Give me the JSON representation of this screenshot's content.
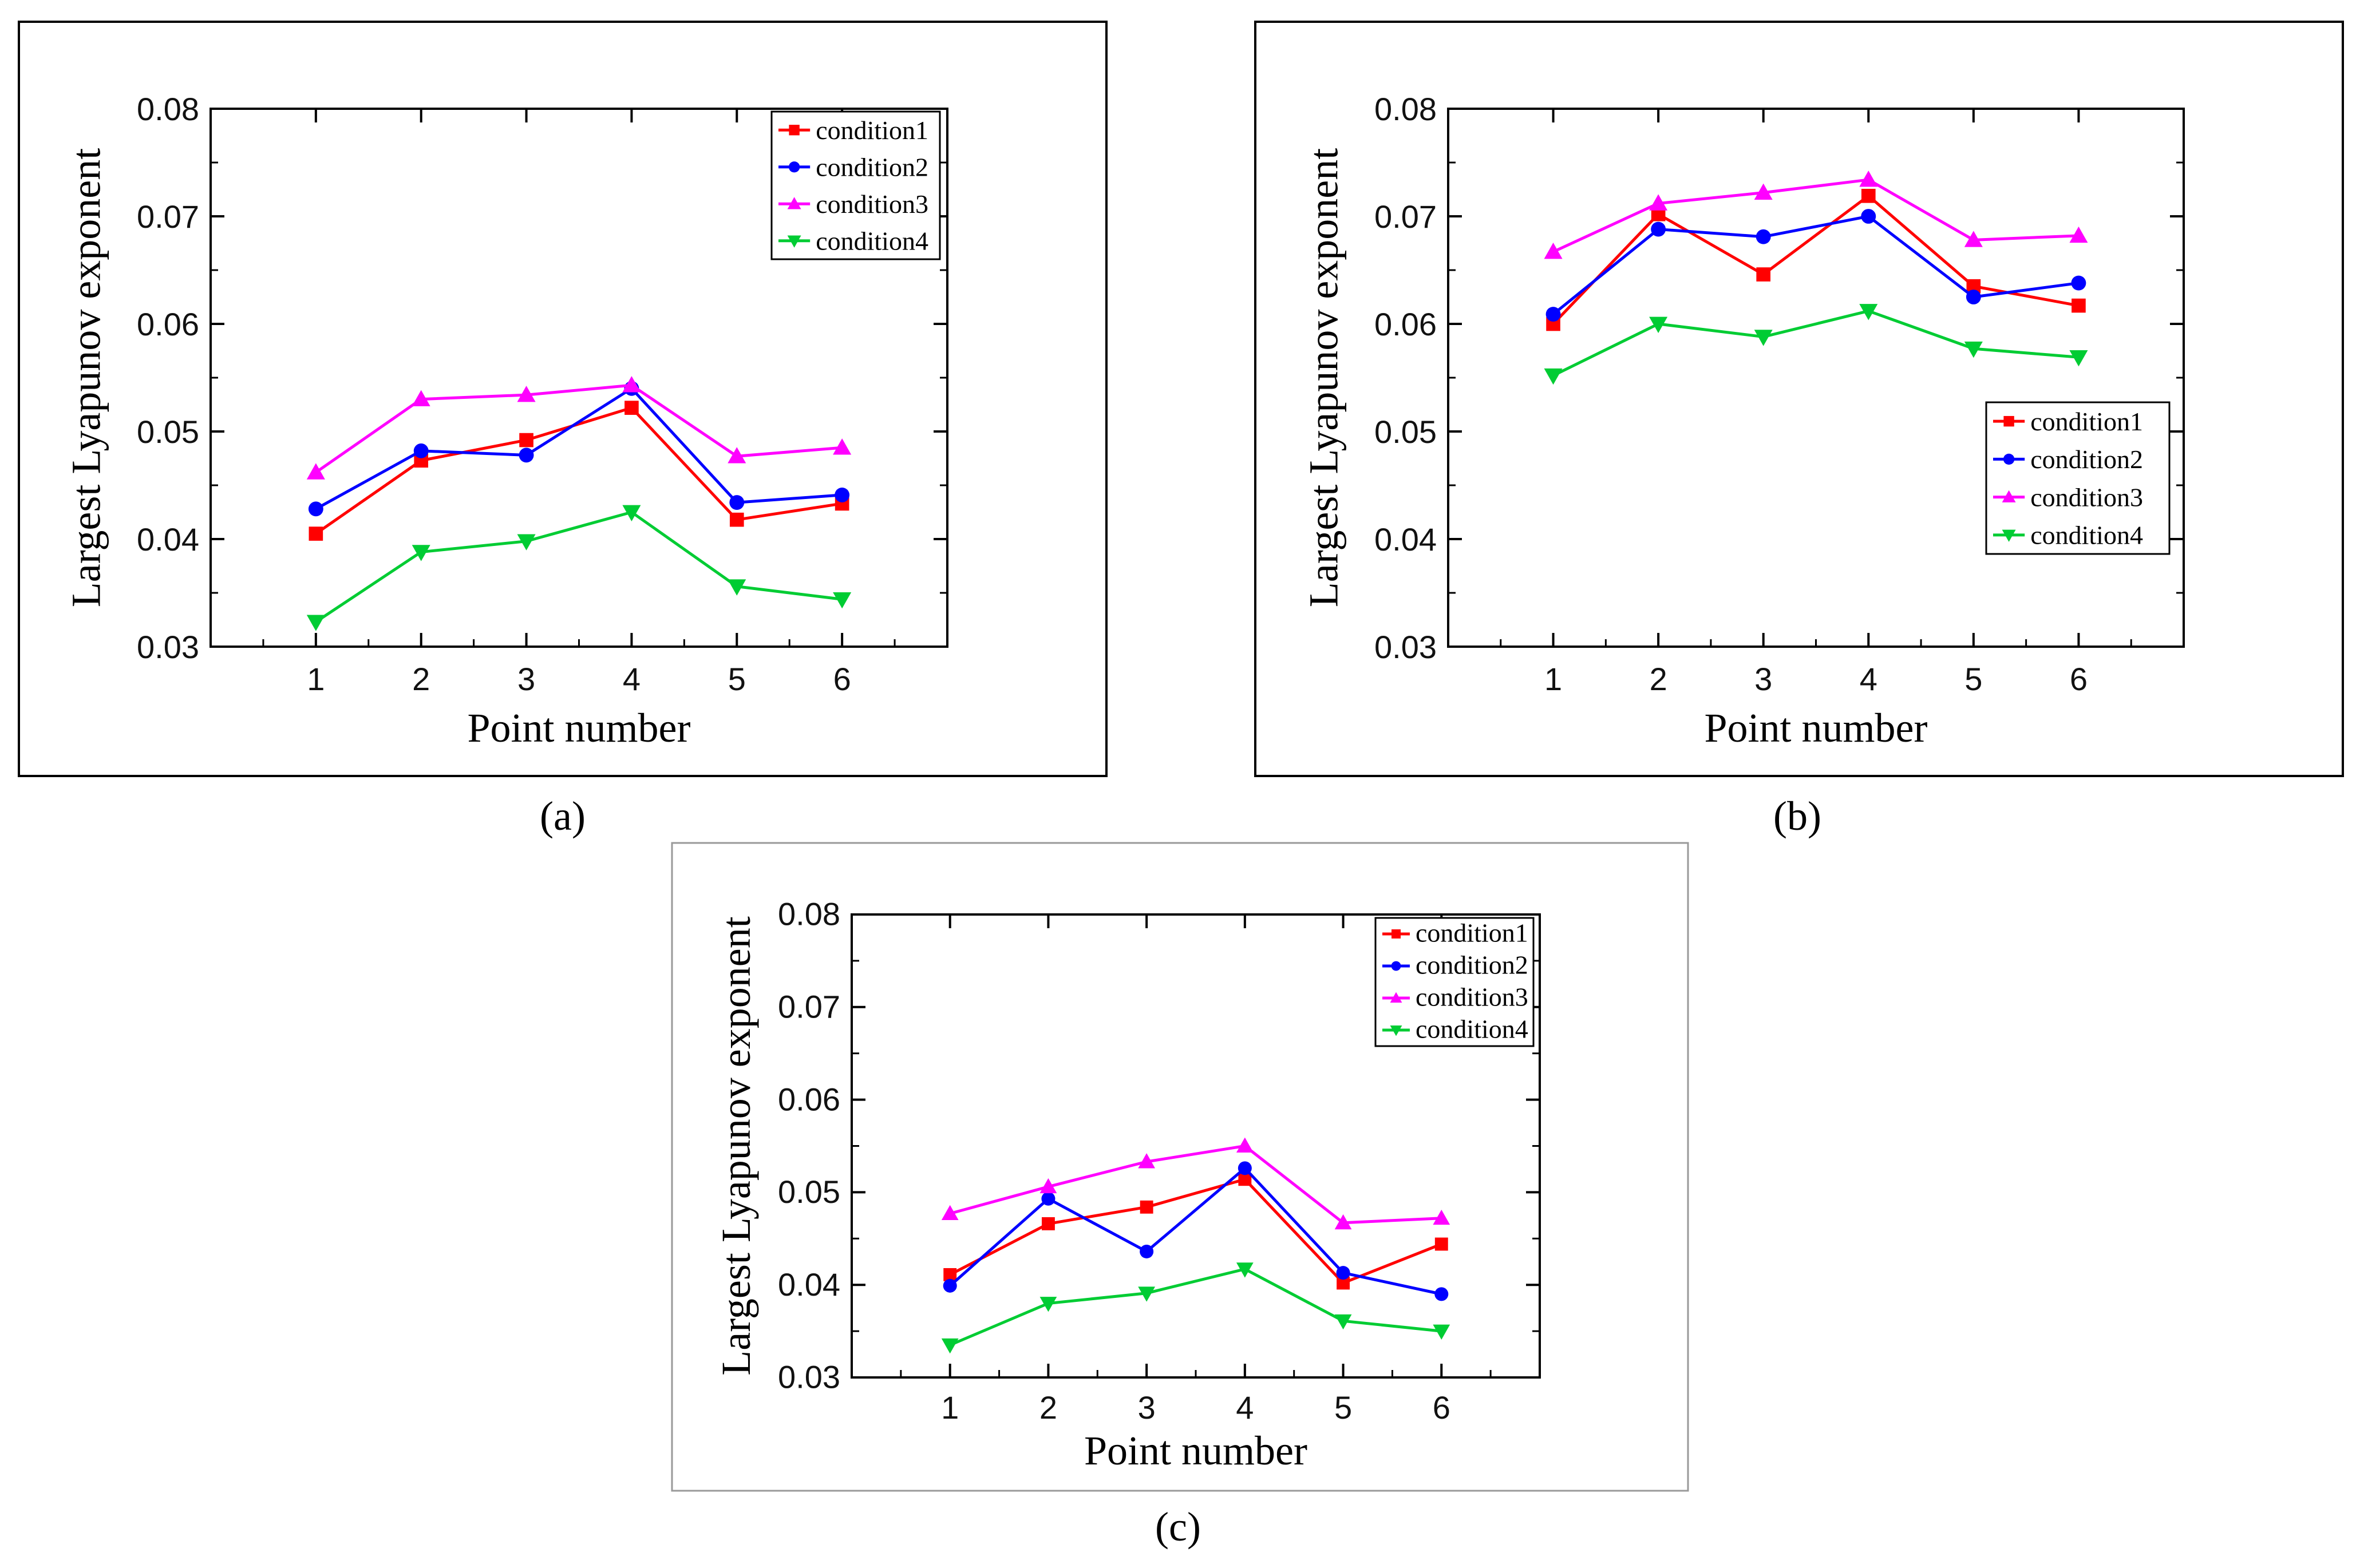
{
  "figure": {
    "captions": [
      "(a)",
      "(b)",
      "(c)"
    ]
  },
  "series_colors": {
    "condition1": "#ff0000",
    "condition2": "#0000ff",
    "condition3": "#ff00ff",
    "condition4": "#00cc33"
  },
  "chart_data": [
    {
      "id": "a",
      "type": "line",
      "caption": "(a)",
      "xlabel": "Point number",
      "ylabel": "Largest Lyapunov exponent",
      "x": [
        1,
        2,
        3,
        4,
        5,
        6
      ],
      "xlim": [
        0,
        7
      ],
      "ylim": [
        0.03,
        0.08
      ],
      "yticks": [
        "0.03",
        "0.04",
        "0.05",
        "0.06",
        "0.07",
        "0.08"
      ],
      "xticks": [
        "1",
        "2",
        "3",
        "4",
        "5",
        "6"
      ],
      "legend_position": "top-right",
      "series": [
        {
          "name": "condition1",
          "marker": "square",
          "values": [
            0.0405,
            0.0473,
            0.0492,
            0.0522,
            0.0418,
            0.0433
          ]
        },
        {
          "name": "condition2",
          "marker": "circle",
          "values": [
            0.0428,
            0.0482,
            0.0478,
            0.054,
            0.0434,
            0.0441
          ]
        },
        {
          "name": "condition3",
          "marker": "triangle-up",
          "values": [
            0.0462,
            0.053,
            0.0534,
            0.0543,
            0.0477,
            0.0485
          ]
        },
        {
          "name": "condition4",
          "marker": "triangle-down",
          "values": [
            0.0323,
            0.0388,
            0.0398,
            0.0425,
            0.0356,
            0.0344
          ]
        }
      ]
    },
    {
      "id": "b",
      "type": "line",
      "caption": "(b)",
      "xlabel": "Point number",
      "ylabel": "Largest Lyapunov exponent",
      "x": [
        1,
        2,
        3,
        4,
        5,
        6
      ],
      "xlim": [
        0,
        7
      ],
      "ylim": [
        0.03,
        0.08
      ],
      "yticks": [
        "0.03",
        "0.04",
        "0.05",
        "0.06",
        "0.07",
        "0.08"
      ],
      "xticks": [
        "1",
        "2",
        "3",
        "4",
        "5",
        "6"
      ],
      "legend_position": "bottom-right",
      "series": [
        {
          "name": "condition1",
          "marker": "square",
          "values": [
            0.06,
            0.0702,
            0.0646,
            0.0719,
            0.0635,
            0.0617
          ]
        },
        {
          "name": "condition2",
          "marker": "circle",
          "values": [
            0.0609,
            0.0688,
            0.0681,
            0.07,
            0.0625,
            0.0638
          ]
        },
        {
          "name": "condition3",
          "marker": "triangle-up",
          "values": [
            0.0667,
            0.0712,
            0.0722,
            0.0734,
            0.0678,
            0.0682
          ]
        },
        {
          "name": "condition4",
          "marker": "triangle-down",
          "values": [
            0.0552,
            0.06,
            0.0588,
            0.0612,
            0.0577,
            0.0569
          ]
        }
      ]
    },
    {
      "id": "c",
      "type": "line",
      "caption": "(c)",
      "xlabel": "Point number",
      "ylabel": "Largest Lyapunov exponent",
      "x": [
        1,
        2,
        3,
        4,
        5,
        6
      ],
      "xlim": [
        0,
        7
      ],
      "ylim": [
        0.03,
        0.08
      ],
      "yticks": [
        "0.03",
        "0.04",
        "0.05",
        "0.06",
        "0.07",
        "0.08"
      ],
      "xticks": [
        "1",
        "2",
        "3",
        "4",
        "5",
        "6"
      ],
      "legend_position": "top-right",
      "series": [
        {
          "name": "condition1",
          "marker": "square",
          "values": [
            0.0411,
            0.0466,
            0.0484,
            0.0514,
            0.0402,
            0.0444
          ]
        },
        {
          "name": "condition2",
          "marker": "circle",
          "values": [
            0.0399,
            0.0493,
            0.0436,
            0.0526,
            0.0413,
            0.039
          ]
        },
        {
          "name": "condition3",
          "marker": "triangle-up",
          "values": [
            0.0477,
            0.0506,
            0.0533,
            0.055,
            0.0467,
            0.0472
          ]
        },
        {
          "name": "condition4",
          "marker": "triangle-down",
          "values": [
            0.0335,
            0.038,
            0.0391,
            0.0417,
            0.0361,
            0.035
          ]
        }
      ]
    }
  ]
}
